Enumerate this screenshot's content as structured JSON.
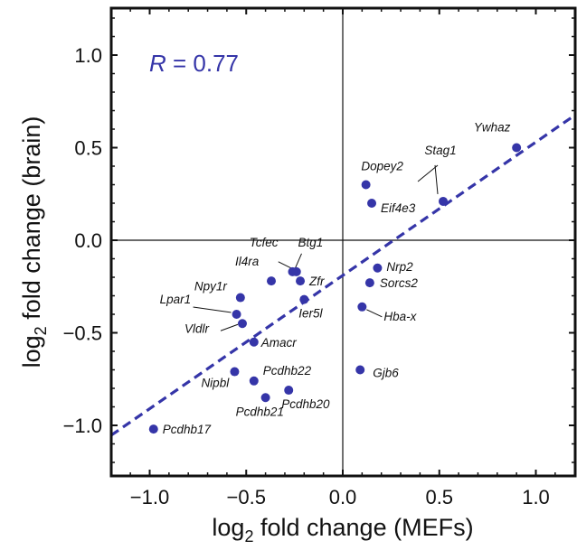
{
  "chart_data": {
    "type": "scatter",
    "xlabel": {
      "prefix": "log",
      "subscript": "2",
      "suffix": " fold change (MEFs)"
    },
    "ylabel": {
      "prefix": "log",
      "subscript": "2",
      "suffix": " fold change (brain)"
    },
    "xlim": [
      -1.2,
      1.2
    ],
    "ylim": [
      -1.25,
      1.25
    ],
    "x_ticks": [
      -1.0,
      -0.5,
      0.0,
      0.5,
      1.0
    ],
    "x_tick_labels": [
      "−1.0",
      "−0.5",
      "0.0",
      "0.5",
      "1.0"
    ],
    "y_ticks": [
      -1.0,
      -0.5,
      0.0,
      0.5,
      1.0
    ],
    "y_tick_labels": [
      "−1.0",
      "−0.5",
      "0.0",
      "0.5",
      "1.0"
    ],
    "annotation": {
      "symbol": "R",
      "text": " = 0.77"
    },
    "grid": false,
    "zero_lines": true,
    "point_color": "#3535a8",
    "fit_line": {
      "style": "dashed",
      "color": "#3535a8",
      "slope": 0.72,
      "intercept": -0.19
    },
    "points": [
      {
        "label": "Ywhaz",
        "x": 0.9,
        "y": 0.5
      },
      {
        "label": "Stag1",
        "x": 0.52,
        "y": 0.21
      },
      {
        "label": "Dopey2",
        "x": 0.12,
        "y": 0.3
      },
      {
        "label": "Eif4e3",
        "x": 0.15,
        "y": 0.2
      },
      {
        "label": "Nrp2",
        "x": 0.18,
        "y": -0.15
      },
      {
        "label": "Sorcs2",
        "x": 0.14,
        "y": -0.23
      },
      {
        "label": "Hba-x",
        "x": 0.1,
        "y": -0.36
      },
      {
        "label": "Gjb6",
        "x": 0.09,
        "y": -0.7
      },
      {
        "label": "Tcfec",
        "x": -0.24,
        "y": -0.17
      },
      {
        "label": "Btg1",
        "x": -0.26,
        "y": -0.17
      },
      {
        "label": "Zfr",
        "x": -0.22,
        "y": -0.22
      },
      {
        "label": "Ier5l",
        "x": -0.2,
        "y": -0.32
      },
      {
        "label": "Il4ra",
        "x": -0.37,
        "y": -0.22
      },
      {
        "label": "Npy1r",
        "x": -0.53,
        "y": -0.31
      },
      {
        "label": "Lpar1",
        "x": -0.55,
        "y": -0.4
      },
      {
        "label": "Vldlr",
        "x": -0.52,
        "y": -0.45
      },
      {
        "label": "Amacr",
        "x": -0.46,
        "y": -0.55
      },
      {
        "label": "Nipbl",
        "x": -0.56,
        "y": -0.71
      },
      {
        "label": "Pcdhb22",
        "x": -0.46,
        "y": -0.76
      },
      {
        "label": "Pcdhb21",
        "x": -0.4,
        "y": -0.85
      },
      {
        "label": "Pcdhb20",
        "x": -0.28,
        "y": -0.81
      },
      {
        "label": "Pcdhb17",
        "x": -0.98,
        "y": -1.02
      }
    ]
  }
}
